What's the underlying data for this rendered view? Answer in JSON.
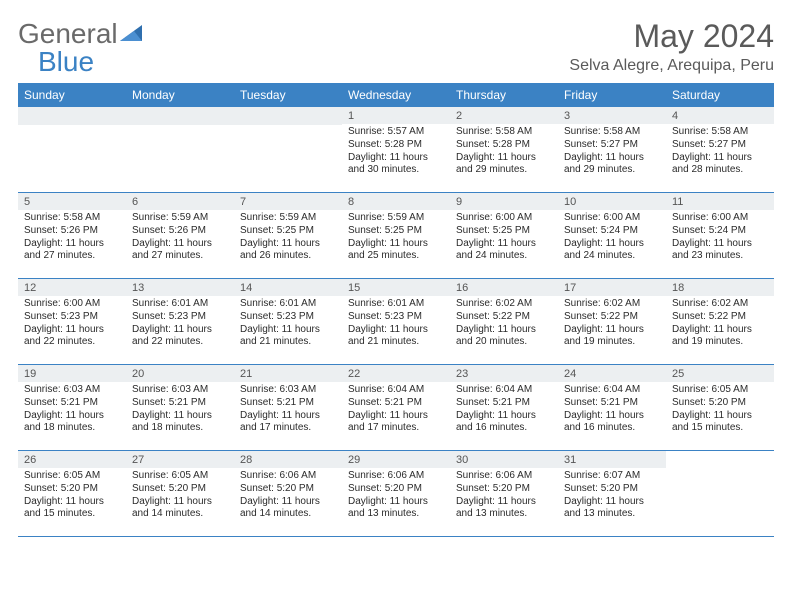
{
  "brand": {
    "general": "General",
    "blue": "Blue"
  },
  "header": {
    "month_title": "May 2024",
    "location": "Selva Alegre, Arequipa, Peru"
  },
  "calendar": {
    "day_headers": [
      "Sunday",
      "Monday",
      "Tuesday",
      "Wednesday",
      "Thursday",
      "Friday",
      "Saturday"
    ],
    "header_bg": "#3b82c4",
    "header_fg": "#ffffff",
    "border_color": "#3b82c4",
    "daynum_bg": "#eceff1",
    "first_weekday_index": 3,
    "days": [
      {
        "n": 1,
        "sr": "5:57 AM",
        "ss": "5:28 PM",
        "dl": "11 hours and 30 minutes."
      },
      {
        "n": 2,
        "sr": "5:58 AM",
        "ss": "5:28 PM",
        "dl": "11 hours and 29 minutes."
      },
      {
        "n": 3,
        "sr": "5:58 AM",
        "ss": "5:27 PM",
        "dl": "11 hours and 29 minutes."
      },
      {
        "n": 4,
        "sr": "5:58 AM",
        "ss": "5:27 PM",
        "dl": "11 hours and 28 minutes."
      },
      {
        "n": 5,
        "sr": "5:58 AM",
        "ss": "5:26 PM",
        "dl": "11 hours and 27 minutes."
      },
      {
        "n": 6,
        "sr": "5:59 AM",
        "ss": "5:26 PM",
        "dl": "11 hours and 27 minutes."
      },
      {
        "n": 7,
        "sr": "5:59 AM",
        "ss": "5:25 PM",
        "dl": "11 hours and 26 minutes."
      },
      {
        "n": 8,
        "sr": "5:59 AM",
        "ss": "5:25 PM",
        "dl": "11 hours and 25 minutes."
      },
      {
        "n": 9,
        "sr": "6:00 AM",
        "ss": "5:25 PM",
        "dl": "11 hours and 24 minutes."
      },
      {
        "n": 10,
        "sr": "6:00 AM",
        "ss": "5:24 PM",
        "dl": "11 hours and 24 minutes."
      },
      {
        "n": 11,
        "sr": "6:00 AM",
        "ss": "5:24 PM",
        "dl": "11 hours and 23 minutes."
      },
      {
        "n": 12,
        "sr": "6:00 AM",
        "ss": "5:23 PM",
        "dl": "11 hours and 22 minutes."
      },
      {
        "n": 13,
        "sr": "6:01 AM",
        "ss": "5:23 PM",
        "dl": "11 hours and 22 minutes."
      },
      {
        "n": 14,
        "sr": "6:01 AM",
        "ss": "5:23 PM",
        "dl": "11 hours and 21 minutes."
      },
      {
        "n": 15,
        "sr": "6:01 AM",
        "ss": "5:23 PM",
        "dl": "11 hours and 21 minutes."
      },
      {
        "n": 16,
        "sr": "6:02 AM",
        "ss": "5:22 PM",
        "dl": "11 hours and 20 minutes."
      },
      {
        "n": 17,
        "sr": "6:02 AM",
        "ss": "5:22 PM",
        "dl": "11 hours and 19 minutes."
      },
      {
        "n": 18,
        "sr": "6:02 AM",
        "ss": "5:22 PM",
        "dl": "11 hours and 19 minutes."
      },
      {
        "n": 19,
        "sr": "6:03 AM",
        "ss": "5:21 PM",
        "dl": "11 hours and 18 minutes."
      },
      {
        "n": 20,
        "sr": "6:03 AM",
        "ss": "5:21 PM",
        "dl": "11 hours and 18 minutes."
      },
      {
        "n": 21,
        "sr": "6:03 AM",
        "ss": "5:21 PM",
        "dl": "11 hours and 17 minutes."
      },
      {
        "n": 22,
        "sr": "6:04 AM",
        "ss": "5:21 PM",
        "dl": "11 hours and 17 minutes."
      },
      {
        "n": 23,
        "sr": "6:04 AM",
        "ss": "5:21 PM",
        "dl": "11 hours and 16 minutes."
      },
      {
        "n": 24,
        "sr": "6:04 AM",
        "ss": "5:21 PM",
        "dl": "11 hours and 16 minutes."
      },
      {
        "n": 25,
        "sr": "6:05 AM",
        "ss": "5:20 PM",
        "dl": "11 hours and 15 minutes."
      },
      {
        "n": 26,
        "sr": "6:05 AM",
        "ss": "5:20 PM",
        "dl": "11 hours and 15 minutes."
      },
      {
        "n": 27,
        "sr": "6:05 AM",
        "ss": "5:20 PM",
        "dl": "11 hours and 14 minutes."
      },
      {
        "n": 28,
        "sr": "6:06 AM",
        "ss": "5:20 PM",
        "dl": "11 hours and 14 minutes."
      },
      {
        "n": 29,
        "sr": "6:06 AM",
        "ss": "5:20 PM",
        "dl": "11 hours and 13 minutes."
      },
      {
        "n": 30,
        "sr": "6:06 AM",
        "ss": "5:20 PM",
        "dl": "11 hours and 13 minutes."
      },
      {
        "n": 31,
        "sr": "6:07 AM",
        "ss": "5:20 PM",
        "dl": "11 hours and 13 minutes."
      }
    ],
    "labels": {
      "sunrise_prefix": "Sunrise: ",
      "sunset_prefix": "Sunset: ",
      "daylight_prefix": "Daylight: "
    }
  }
}
